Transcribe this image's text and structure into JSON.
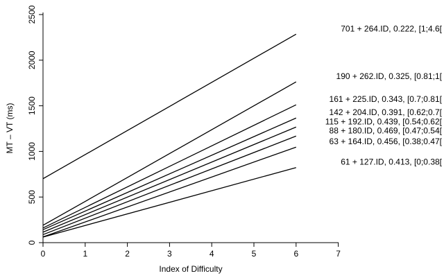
{
  "chart_data": {
    "type": "line",
    "title": "",
    "xlabel": "Index of Difficulty",
    "ylabel": "MT – VT (ms)",
    "xlim": [
      0,
      7
    ],
    "ylim": [
      0,
      2500
    ],
    "xticks": [
      0,
      1,
      2,
      3,
      4,
      5,
      6,
      7
    ],
    "yticks": [
      0,
      500,
      1000,
      1500,
      2000,
      2500
    ],
    "x_range": [
      0,
      6
    ],
    "grid": false,
    "legend": "none",
    "series": [
      {
        "intercept": 701,
        "slope": 264,
        "values": [
          701,
          2285
        ],
        "annotation": "701 + 264.ID, 0.222, [1;4.6["
      },
      {
        "intercept": 190,
        "slope": 262,
        "values": [
          190,
          1762
        ],
        "annotation": "190 + 262.ID, 0.325, [0.81;1["
      },
      {
        "intercept": 161,
        "slope": 225,
        "values": [
          161,
          1511
        ],
        "annotation": "161 + 225.ID, 0.343, [0.7;0.81["
      },
      {
        "intercept": 142,
        "slope": 204,
        "values": [
          142,
          1366
        ],
        "annotation": "142 + 204.ID, 0.391, [0.62;0.7["
      },
      {
        "intercept": 115,
        "slope": 192,
        "values": [
          115,
          1267
        ],
        "annotation": "115 + 192.ID, 0.439, [0.54;0.62["
      },
      {
        "intercept": 88,
        "slope": 180,
        "values": [
          88,
          1168
        ],
        "annotation": "88 + 180.ID, 0.469, [0.47;0.54["
      },
      {
        "intercept": 63,
        "slope": 164,
        "values": [
          63,
          1047
        ],
        "annotation": "63 + 164.ID, 0.456, [0.38;0.47["
      },
      {
        "intercept": 61,
        "slope": 127,
        "values": [
          61,
          823
        ],
        "annotation": "61 + 127.ID, 0.413, [0;0.38["
      }
    ]
  }
}
